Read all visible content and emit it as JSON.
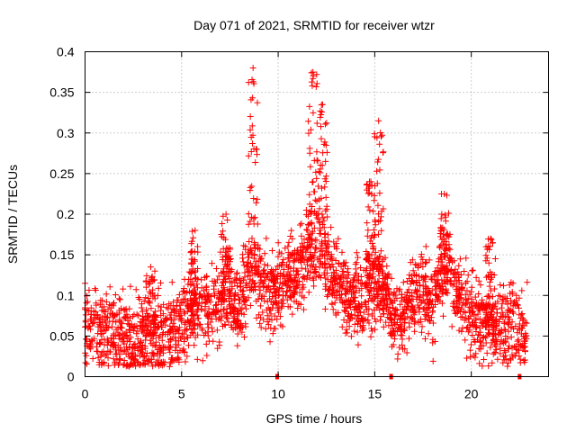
{
  "chart_data": {
    "type": "scatter",
    "title": "Day 071 of 2021, SRMTID for receiver wtzr",
    "xlabel": "GPS time / hours",
    "ylabel": "SRMTID / TECUs",
    "xlim": [
      0,
      24
    ],
    "ylim": [
      0,
      0.4
    ],
    "xticks": [
      0,
      5,
      10,
      15,
      20
    ],
    "xtick_labels": [
      "0",
      "5",
      "10",
      "15",
      "20"
    ],
    "yticks": [
      0,
      0.05,
      0.1,
      0.15,
      0.2,
      0.25,
      0.3,
      0.35,
      0.4
    ],
    "ytick_labels": [
      "0",
      "0.05",
      "0.1",
      "0.15",
      "0.2",
      "0.25",
      "0.3",
      "0.35",
      "0.4"
    ],
    "grid": true,
    "marker": "+",
    "color": "#ff0000",
    "series": [
      {
        "name": "SRMTID",
        "envelope": [
          {
            "x": 0.0,
            "y": 0.065
          },
          {
            "x": 0.5,
            "y": 0.06
          },
          {
            "x": 1.0,
            "y": 0.055
          },
          {
            "x": 1.5,
            "y": 0.05
          },
          {
            "x": 2.0,
            "y": 0.05
          },
          {
            "x": 2.5,
            "y": 0.045
          },
          {
            "x": 3.0,
            "y": 0.045
          },
          {
            "x": 3.5,
            "y": 0.05
          },
          {
            "x": 4.0,
            "y": 0.05
          },
          {
            "x": 4.5,
            "y": 0.055
          },
          {
            "x": 5.0,
            "y": 0.065
          },
          {
            "x": 5.5,
            "y": 0.075
          },
          {
            "x": 6.0,
            "y": 0.08
          },
          {
            "x": 6.5,
            "y": 0.085
          },
          {
            "x": 7.0,
            "y": 0.09
          },
          {
            "x": 7.5,
            "y": 0.1
          },
          {
            "x": 8.0,
            "y": 0.08
          },
          {
            "x": 8.5,
            "y": 0.14
          },
          {
            "x": 9.0,
            "y": 0.12
          },
          {
            "x": 9.5,
            "y": 0.11
          },
          {
            "x": 10.0,
            "y": 0.11
          },
          {
            "x": 10.5,
            "y": 0.12
          },
          {
            "x": 11.0,
            "y": 0.13
          },
          {
            "x": 11.5,
            "y": 0.15
          },
          {
            "x": 12.0,
            "y": 0.16
          },
          {
            "x": 12.5,
            "y": 0.14
          },
          {
            "x": 13.0,
            "y": 0.12
          },
          {
            "x": 13.5,
            "y": 0.1
          },
          {
            "x": 14.0,
            "y": 0.095
          },
          {
            "x": 14.5,
            "y": 0.1
          },
          {
            "x": 15.0,
            "y": 0.12
          },
          {
            "x": 15.5,
            "y": 0.1
          },
          {
            "x": 16.0,
            "y": 0.07
          },
          {
            "x": 16.5,
            "y": 0.08
          },
          {
            "x": 17.0,
            "y": 0.1
          },
          {
            "x": 17.5,
            "y": 0.11
          },
          {
            "x": 18.0,
            "y": 0.085
          },
          {
            "x": 18.5,
            "y": 0.13
          },
          {
            "x": 19.0,
            "y": 0.12
          },
          {
            "x": 19.5,
            "y": 0.1
          },
          {
            "x": 20.0,
            "y": 0.07
          },
          {
            "x": 20.5,
            "y": 0.065
          },
          {
            "x": 21.0,
            "y": 0.065
          },
          {
            "x": 21.5,
            "y": 0.06
          },
          {
            "x": 22.0,
            "y": 0.06
          },
          {
            "x": 22.5,
            "y": 0.055
          },
          {
            "x": 22.9,
            "y": 0.05
          }
        ],
        "spread": 0.035,
        "spikes": [
          {
            "x": 8.7,
            "ymax": 0.38
          },
          {
            "x": 11.8,
            "ymax": 0.375
          },
          {
            "x": 12.3,
            "ymax": 0.335
          },
          {
            "x": 15.2,
            "ymax": 0.315
          },
          {
            "x": 18.6,
            "ymax": 0.225
          },
          {
            "x": 7.3,
            "ymax": 0.2
          },
          {
            "x": 5.7,
            "ymax": 0.18
          },
          {
            "x": 3.4,
            "ymax": 0.135
          },
          {
            "x": 21.0,
            "ymax": 0.17
          },
          {
            "x": 14.8,
            "ymax": 0.24
          }
        ],
        "data_gaps_markers_x": [
          9.95,
          15.85,
          22.5
        ]
      }
    ]
  }
}
